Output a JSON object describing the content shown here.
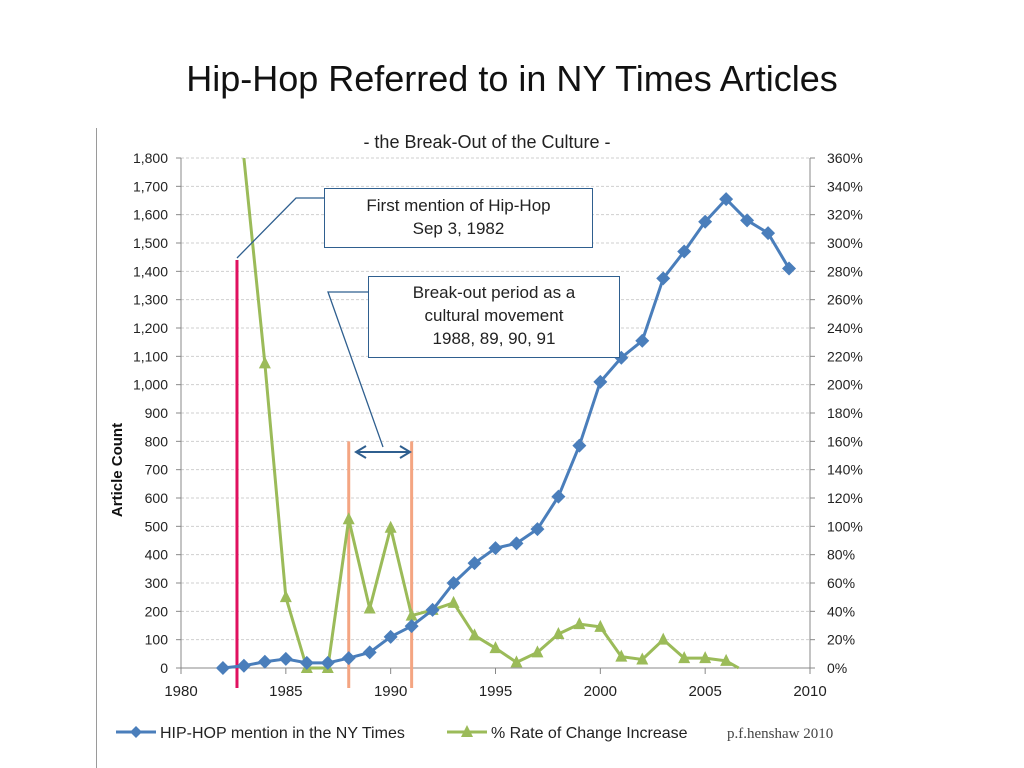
{
  "slide": {
    "title": "Hip-Hop Referred to in NY Times Articles"
  },
  "chart_data": {
    "type": "line",
    "title": "- the Break-Out of the Culture -",
    "ylabel": "Article Count",
    "xlabel": "",
    "xlim": [
      1980,
      2010
    ],
    "ylim": [
      0,
      1800
    ],
    "y2lim": [
      0,
      3.6
    ],
    "x_ticks": [
      "1980",
      "1985",
      "1990",
      "1995",
      "2000",
      "2005",
      "2010"
    ],
    "y_ticks": [
      "0",
      "100",
      "200",
      "300",
      "400",
      "500",
      "600",
      "700",
      "800",
      "900",
      "1,000",
      "1,100",
      "1,200",
      "1,300",
      "1,400",
      "1,500",
      "1,600",
      "1,700",
      "1,800"
    ],
    "y2_ticks": [
      "0%",
      "20%",
      "40%",
      "60%",
      "80%",
      "100%",
      "120%",
      "140%",
      "160%",
      "180%",
      "200%",
      "220%",
      "240%",
      "260%",
      "280%",
      "300%",
      "320%",
      "340%",
      "360%"
    ],
    "grid": true,
    "legend_position": "bottom",
    "series": [
      {
        "name": "HIP-HOP mention in the NY Times",
        "axis": "left",
        "marker": "diamond",
        "color": "#4a7ebb",
        "x": [
          1982,
          1983,
          1984,
          1985,
          1986,
          1987,
          1988,
          1989,
          1990,
          1991,
          1992,
          1993,
          1994,
          1995,
          1996,
          1997,
          1998,
          1999,
          2000,
          2001,
          2002,
          2003,
          2004,
          2005,
          2006,
          2007,
          2008,
          2009
        ],
        "values": [
          0,
          8,
          22,
          32,
          18,
          18,
          35,
          55,
          110,
          148,
          205,
          300,
          370,
          423,
          440,
          490,
          605,
          785,
          1010,
          1095,
          1155,
          1375,
          1470,
          1575,
          1655,
          1580,
          1535,
          1410
        ]
      },
      {
        "name": "% Rate of Change Increase",
        "axis": "right",
        "marker": "triangle",
        "color": "#9bbb59",
        "x": [
          1983,
          1984,
          1985,
          1986,
          1987,
          1988,
          1989,
          1990,
          1991,
          1992,
          1993,
          1994,
          1995,
          1996,
          1997,
          1998,
          1999,
          2000,
          2001,
          2002,
          2003,
          2004,
          2005,
          2006,
          2006.6
        ],
        "values": [
          3.6,
          2.15,
          0.5,
          0.0,
          0.0,
          1.05,
          0.42,
          0.99,
          0.37,
          0.41,
          0.46,
          0.23,
          0.14,
          0.04,
          0.11,
          0.24,
          0.31,
          0.29,
          0.08,
          0.06,
          0.2,
          0.07,
          0.07,
          0.05,
          0.0
        ]
      }
    ],
    "vertical_markers": [
      {
        "x": 1982.67,
        "color": "#e0115f",
        "top_value": 1440
      },
      {
        "x": 1988,
        "color": "#f4a582",
        "top_value": 800
      },
      {
        "x": 1991,
        "color": "#f4a582",
        "top_value": 800
      }
    ],
    "annotations": [
      {
        "id": "first",
        "lines": [
          "First mention of Hip-Hop",
          "Sep 3, 1982"
        ]
      },
      {
        "id": "breakout",
        "lines": [
          "Break-out period as a",
          "cultural movement",
          "1988, 89, 90, 91"
        ]
      }
    ],
    "credit": "p.f.henshaw 2010",
    "colors": {
      "blue_series": "#4a7ebb",
      "green_series": "#9bbb59",
      "first_mention_line": "#e0115f",
      "breakout_lines": "#f4a582",
      "callout_border": "#2f5f8f",
      "grid": "#cfcfcf"
    }
  }
}
